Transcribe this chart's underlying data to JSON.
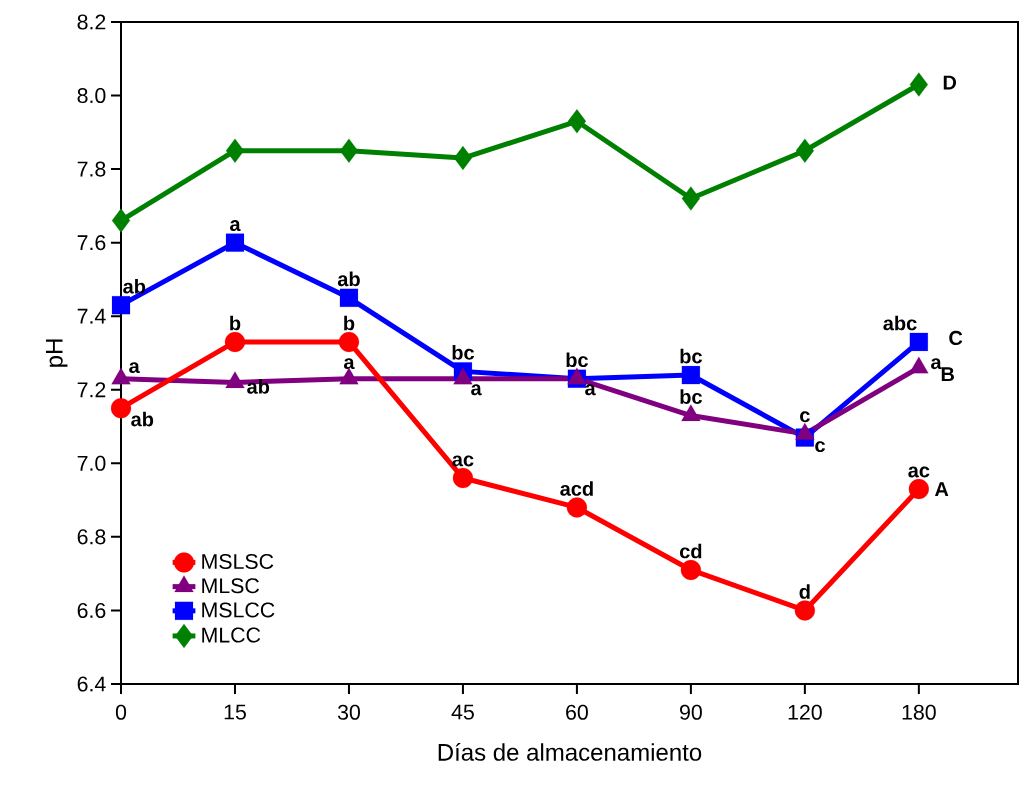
{
  "chart_data": {
    "type": "line",
    "xlabel": "Días de almacenamiento",
    "ylabel": "pH",
    "categories": [
      "0",
      "15",
      "30",
      "45",
      "60",
      "90",
      "120",
      "180"
    ],
    "series": [
      {
        "name": "MSLSC",
        "color": "#ff0000",
        "marker": "circle",
        "values": [
          7.15,
          7.33,
          7.33,
          6.96,
          6.88,
          6.71,
          6.6,
          6.93
        ]
      },
      {
        "name": "MLSC",
        "color": "#800080",
        "marker": "triangle",
        "values": [
          7.23,
          7.22,
          7.23,
          7.23,
          7.23,
          7.13,
          7.08,
          7.26
        ]
      },
      {
        "name": "MSLCC",
        "color": "#0000ff",
        "marker": "square",
        "values": [
          7.43,
          7.6,
          7.45,
          7.25,
          7.23,
          7.24,
          7.07,
          7.33
        ]
      },
      {
        "name": "MLCC",
        "color": "#008000",
        "marker": "diamond",
        "values": [
          7.66,
          7.85,
          7.85,
          7.83,
          7.93,
          7.72,
          7.85,
          8.03
        ]
      }
    ],
    "ylim": [
      6.4,
      8.2
    ],
    "yticks": [
      {
        "value": 6.4,
        "label": "6.4"
      },
      {
        "value": 6.6,
        "label": "6.6"
      },
      {
        "value": 6.8,
        "label": "6.8"
      },
      {
        "value": 7.0,
        "label": "7.0"
      },
      {
        "value": 7.2,
        "label": "7.2"
      },
      {
        "value": 7.4,
        "label": "7.4"
      },
      {
        "value": 7.6,
        "label": "7.6"
      },
      {
        "value": 7.8,
        "label": "7.8"
      },
      {
        "value": 8.0,
        "label": "8.0"
      },
      {
        "value": 8.2,
        "label": "8.2"
      }
    ],
    "grid": false,
    "legend": "bottom left",
    "annotations": [
      {
        "text": "ab",
        "x": "0",
        "y": 7.43
      },
      {
        "text": "a",
        "x": "0",
        "y": 7.23
      },
      {
        "text": "ab",
        "x": "0",
        "y": 7.15
      },
      {
        "text": "a",
        "x": "15",
        "y": 7.6
      },
      {
        "text": "b",
        "x": "15",
        "y": 7.33
      },
      {
        "text": "ab",
        "x": "15",
        "y": 7.22
      },
      {
        "text": "ab",
        "x": "30",
        "y": 7.45
      },
      {
        "text": "b",
        "x": "30",
        "y": 7.33
      },
      {
        "text": "a",
        "x": "30",
        "y": 7.23
      },
      {
        "text": "bc",
        "x": "45",
        "y": 7.25
      },
      {
        "text": "a",
        "x": "45",
        "y": 7.23
      },
      {
        "text": "ac",
        "x": "45",
        "y": 6.96
      },
      {
        "text": "bc",
        "x": "60",
        "y": 7.23
      },
      {
        "text": "a",
        "x": "60",
        "y": 7.23
      },
      {
        "text": "acd",
        "x": "60",
        "y": 6.88
      },
      {
        "text": "bc",
        "x": "90",
        "y": 7.24
      },
      {
        "text": "bc",
        "x": "90",
        "y": 7.13
      },
      {
        "text": "cd",
        "x": "90",
        "y": 6.71
      },
      {
        "text": "c",
        "x": "120",
        "y": 7.08
      },
      {
        "text": "c",
        "x": "120",
        "y": 7.07
      },
      {
        "text": "d",
        "x": "120",
        "y": 6.6
      },
      {
        "text": "abc",
        "x": "180",
        "y": 7.33
      },
      {
        "text": "a",
        "x": "180",
        "y": 7.26
      },
      {
        "text": "ac",
        "x": "180",
        "y": 6.93
      },
      {
        "text": "C",
        "x": "180",
        "y": 7.33
      },
      {
        "text": "B",
        "x": "180",
        "y": 7.26
      },
      {
        "text": "A",
        "x": "180",
        "y": 6.93
      },
      {
        "text": "D",
        "x": "180",
        "y": 8.03
      }
    ]
  }
}
